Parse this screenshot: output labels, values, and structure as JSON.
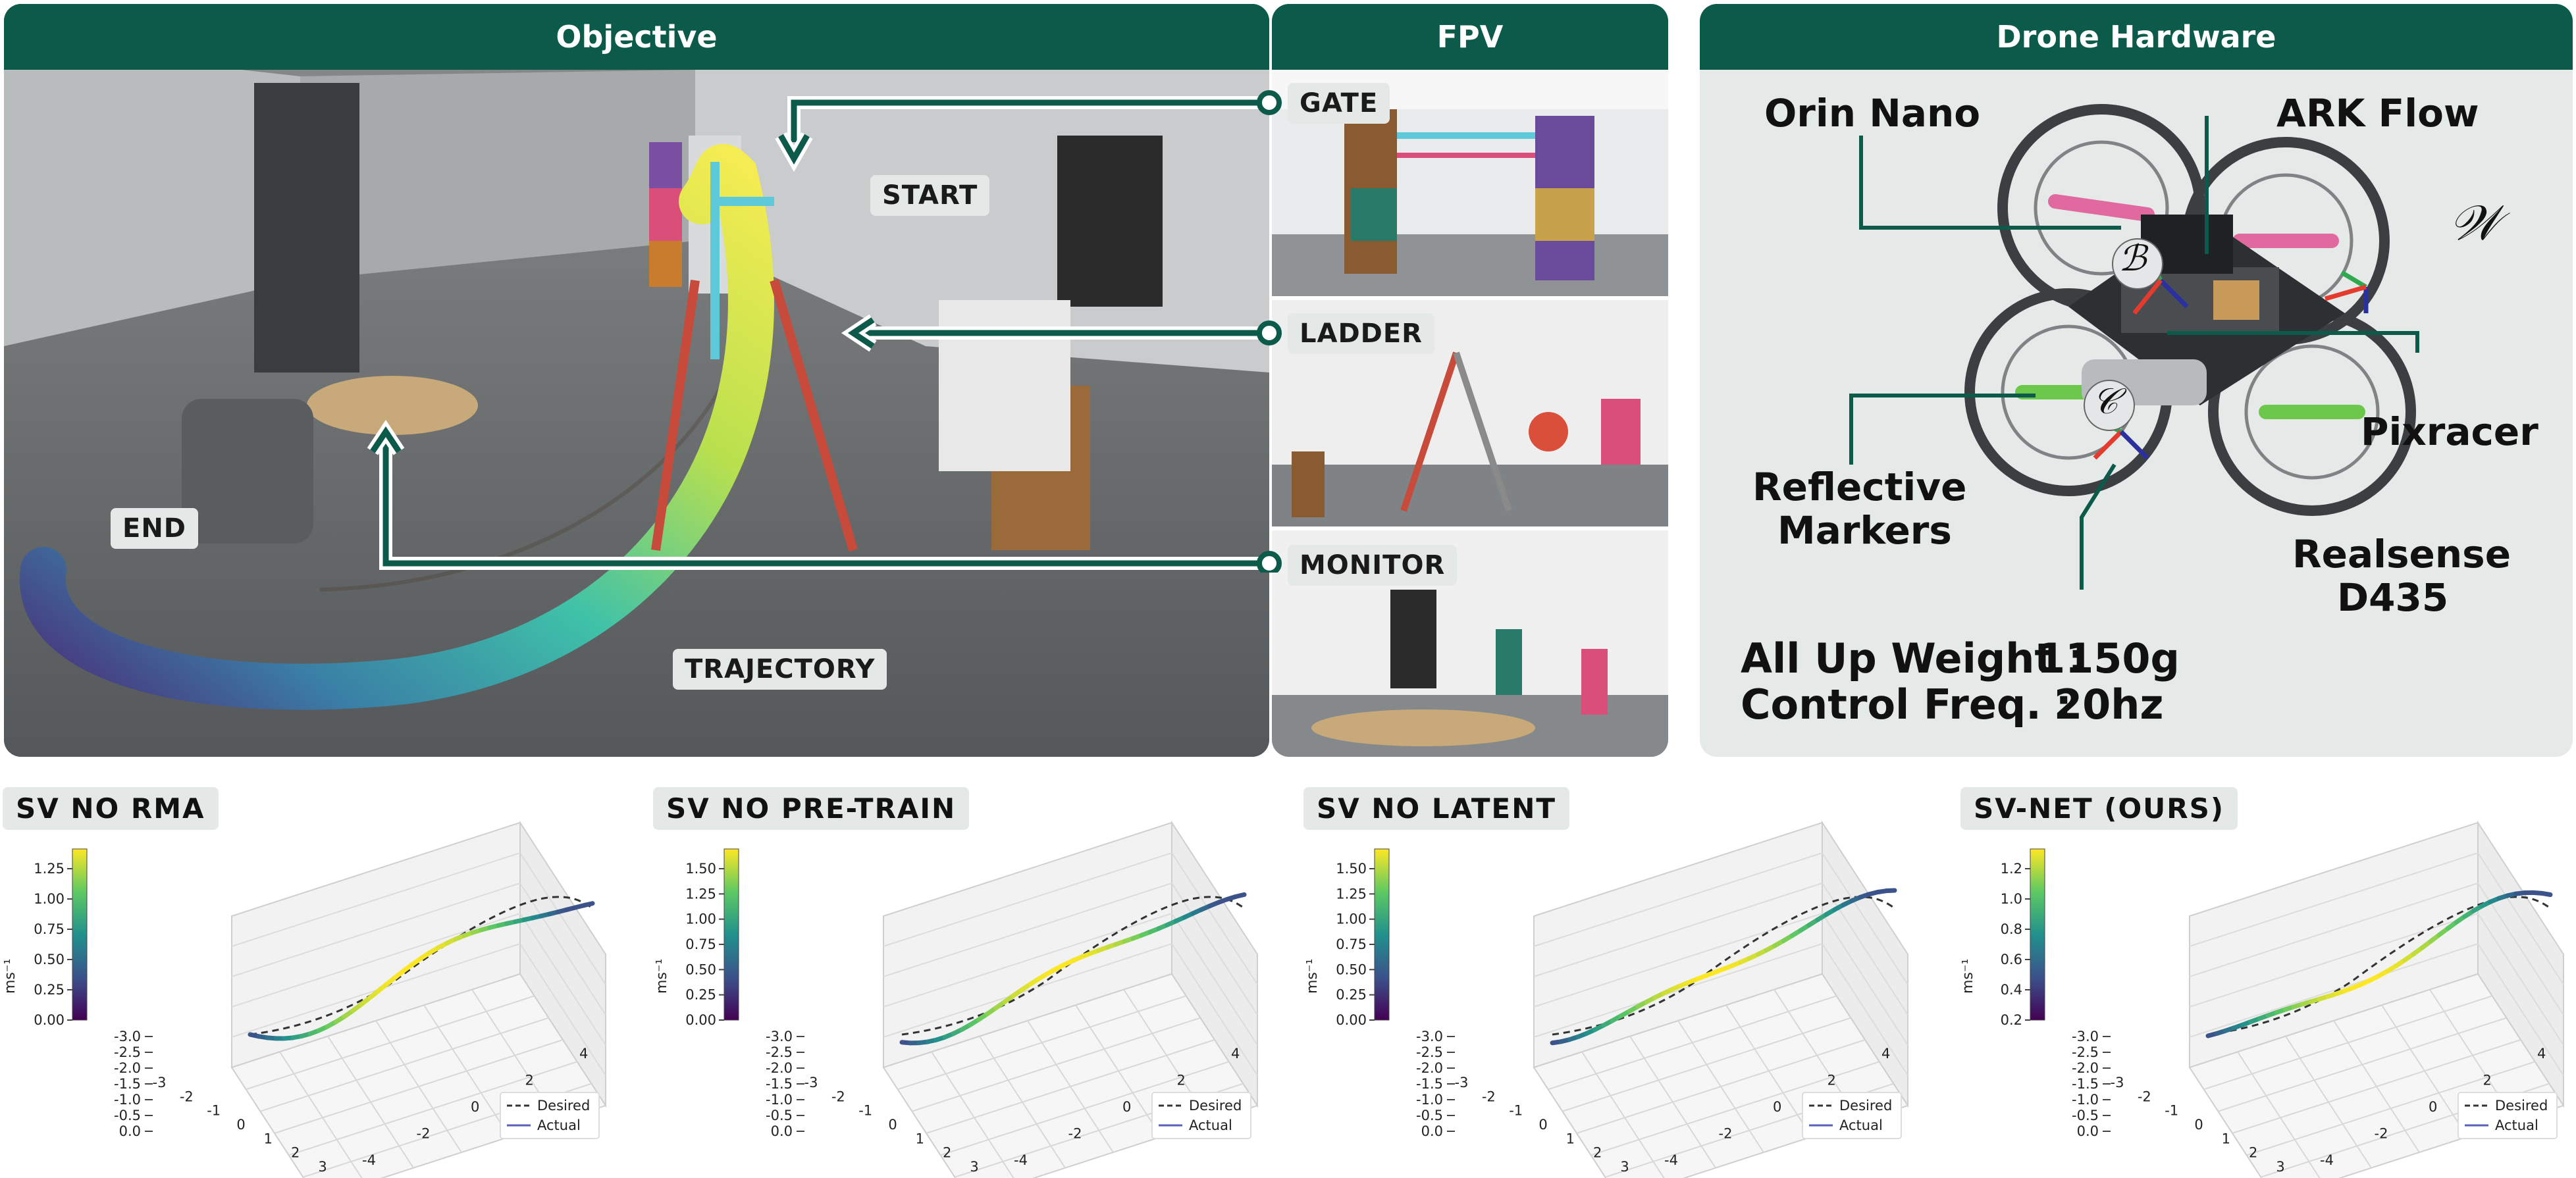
{
  "panels": {
    "objective": {
      "title": "Objective",
      "labels": {
        "start": "START",
        "end": "END",
        "trajectory": "TRAJECTORY"
      }
    },
    "fpv": {
      "title": "FPV",
      "labels": {
        "gate": "GATE",
        "ladder": "LADDER",
        "monitor": "MONITOR"
      }
    },
    "hardware": {
      "title": "Drone Hardware",
      "labels": {
        "orin": "Orin Nano",
        "ark": "ARK Flow",
        "pixracer": "Pixracer",
        "reflective_1": "Reflective",
        "reflective_2": "Markers",
        "realsense_1": "Realsense",
        "realsense_2": "D435",
        "frame_w": "𝒲",
        "frame_b": "ℬ",
        "frame_c": "𝒞"
      },
      "specs": {
        "weight_label": "All Up Weight :",
        "weight_value": "1150g",
        "freq_label": "Control Freq. :",
        "freq_value": "20hz"
      },
      "colors": {
        "axis_x": "#e33b2e",
        "axis_y": "#2fa84f",
        "axis_z": "#2c2f9e"
      }
    }
  },
  "chart_data": [
    {
      "type": "line",
      "title": "SV NO RMA",
      "colorbar_label": "ms⁻¹",
      "colorbar_ticks": [
        "1.25",
        "1.00",
        "0.75",
        "0.50",
        "0.25",
        "0.00"
      ],
      "z_ticks": [
        "-3.0",
        "-2.5",
        "-2.0",
        "-1.5",
        "-1.0",
        "-0.5",
        "0.0"
      ],
      "x_ticks": [
        "-3",
        "-2",
        "-1",
        "0",
        "1",
        "2",
        "3"
      ],
      "y_ticks": [
        "-4",
        "-2",
        "0",
        "2",
        "4"
      ],
      "legend": [
        "Desired",
        "Actual"
      ],
      "colormap": "viridis"
    },
    {
      "type": "line",
      "title": "SV NO PRE-TRAIN",
      "colorbar_label": "ms⁻¹",
      "colorbar_ticks": [
        "1.50",
        "1.25",
        "1.00",
        "0.75",
        "0.50",
        "0.25",
        "0.00"
      ],
      "z_ticks": [
        "-3.0",
        "-2.5",
        "-2.0",
        "-1.5",
        "-1.0",
        "-0.5",
        "0.0"
      ],
      "x_ticks": [
        "-3",
        "-2",
        "-1",
        "0",
        "1",
        "2",
        "3"
      ],
      "y_ticks": [
        "-4",
        "-2",
        "0",
        "2",
        "4"
      ],
      "legend": [
        "Desired",
        "Actual"
      ],
      "colormap": "viridis"
    },
    {
      "type": "line",
      "title": "SV NO LATENT",
      "colorbar_label": "ms⁻¹",
      "colorbar_ticks": [
        "1.50",
        "1.25",
        "1.00",
        "0.75",
        "0.50",
        "0.25",
        "0.00"
      ],
      "z_ticks": [
        "-3.0",
        "-2.5",
        "-2.0",
        "-1.5",
        "-1.0",
        "-0.5",
        "0.0"
      ],
      "x_ticks": [
        "-3",
        "-2",
        "-1",
        "0",
        "1",
        "2",
        "3"
      ],
      "y_ticks": [
        "-4",
        "-2",
        "0",
        "2",
        "4"
      ],
      "legend": [
        "Desired",
        "Actual"
      ],
      "colormap": "viridis"
    },
    {
      "type": "line",
      "title": "SV-NET (OURS)",
      "colorbar_label": "ms⁻¹",
      "colorbar_ticks": [
        "1.2",
        "1.0",
        "0.8",
        "0.6",
        "0.4",
        "0.2"
      ],
      "z_ticks": [
        "-3.0",
        "-2.5",
        "-2.0",
        "-1.5",
        "-1.0",
        "-0.5",
        "0.0"
      ],
      "x_ticks": [
        "-3",
        "-2",
        "-1",
        "0",
        "1",
        "2",
        "3"
      ],
      "y_ticks": [
        "-4",
        "-2",
        "0",
        "2",
        "4"
      ],
      "legend": [
        "Desired",
        "Actual"
      ],
      "colormap": "viridis"
    }
  ]
}
